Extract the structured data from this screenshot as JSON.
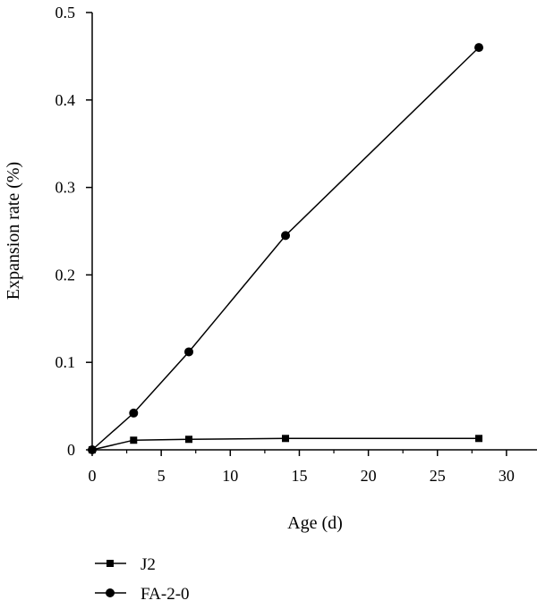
{
  "chart_data": {
    "type": "line",
    "xlabel": "Age (d)",
    "ylabel": "Expansion rate (%)",
    "xlim": [
      0,
      32
    ],
    "ylim": [
      0,
      0.5
    ],
    "xticks": [
      "0",
      "5",
      "10",
      "15",
      "20",
      "25",
      "30"
    ],
    "yticks": [
      "0",
      "0.1",
      "0.2",
      "0.3",
      "0.4",
      "0.5"
    ],
    "grid": false,
    "legend_position": "bottom-left",
    "series": [
      {
        "name": "J2",
        "marker": "square",
        "color": "#000000",
        "x": [
          0,
          3,
          7,
          14,
          28
        ],
        "y": [
          0,
          0.011,
          0.012,
          0.013,
          0.013
        ]
      },
      {
        "name": "FA-2-0",
        "marker": "circle",
        "color": "#000000",
        "x": [
          0,
          3,
          7,
          14,
          28
        ],
        "y": [
          0,
          0.042,
          0.112,
          0.245,
          0.46
        ]
      }
    ]
  }
}
